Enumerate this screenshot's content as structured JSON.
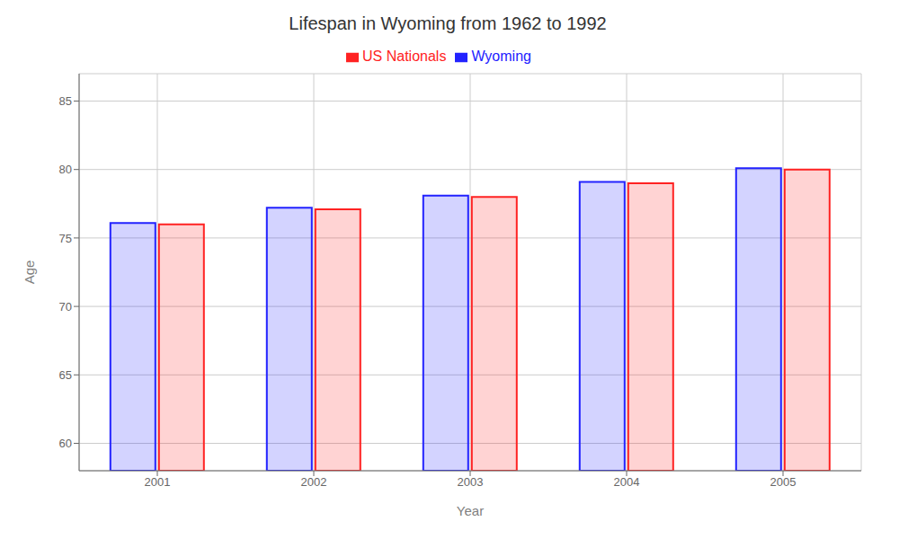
{
  "chart_data": {
    "type": "bar",
    "title": "Lifespan in Wyoming from 1962 to 1992",
    "xlabel": "Year",
    "ylabel": "Age",
    "categories": [
      "2001",
      "2002",
      "2003",
      "2004",
      "2005"
    ],
    "series": [
      {
        "name": "Wyoming",
        "color": "#2222ff",
        "values": [
          76.1,
          77.2,
          78.1,
          79.1,
          80.1
        ]
      },
      {
        "name": "US Nationals",
        "color": "#ff2222",
        "values": [
          76.0,
          77.1,
          78.0,
          79.0,
          80.0
        ]
      }
    ],
    "ylim": [
      58,
      87
    ],
    "yticks": [
      60,
      65,
      70,
      75,
      80,
      85
    ],
    "grid": true,
    "legend": "top"
  }
}
